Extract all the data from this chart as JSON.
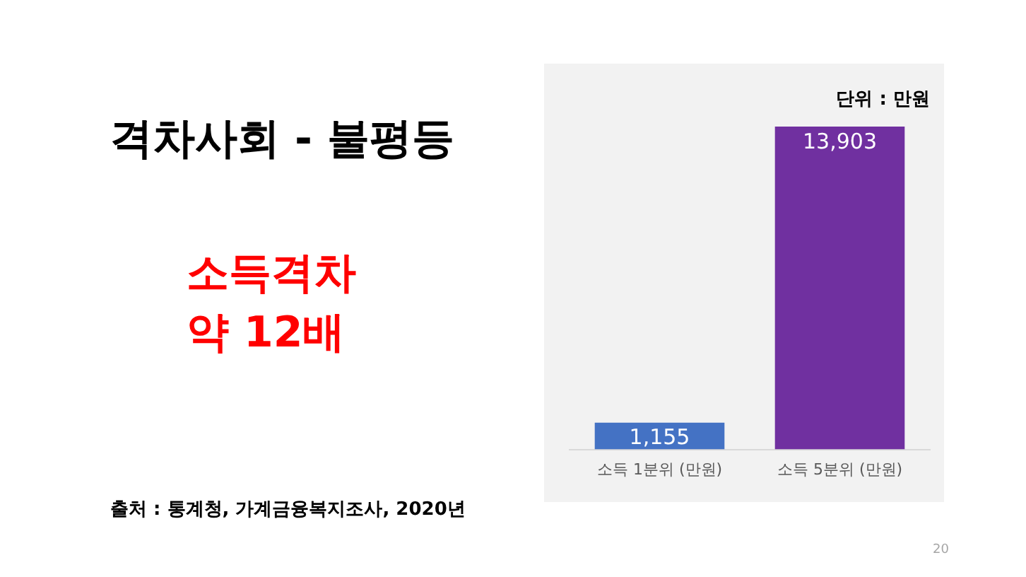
{
  "chart_data": {
    "type": "bar",
    "title": "격차사회 - 불평등",
    "categories": [
      "소득 1분위 (만원)",
      "소득 5분위 (만원)"
    ],
    "values": [
      1155,
      13903
    ],
    "colors": [
      "#4472c4",
      "#7030a0"
    ],
    "value_labels": [
      "1,155",
      "13,903"
    ],
    "relative": false,
    "grid": false,
    "legend": false,
    "annotations": [
      "소득격차",
      "약 12배",
      "출처 : 통계청, 가계금융복지조사, 2020년",
      "단위 : 만원",
      "20"
    ]
  }
}
